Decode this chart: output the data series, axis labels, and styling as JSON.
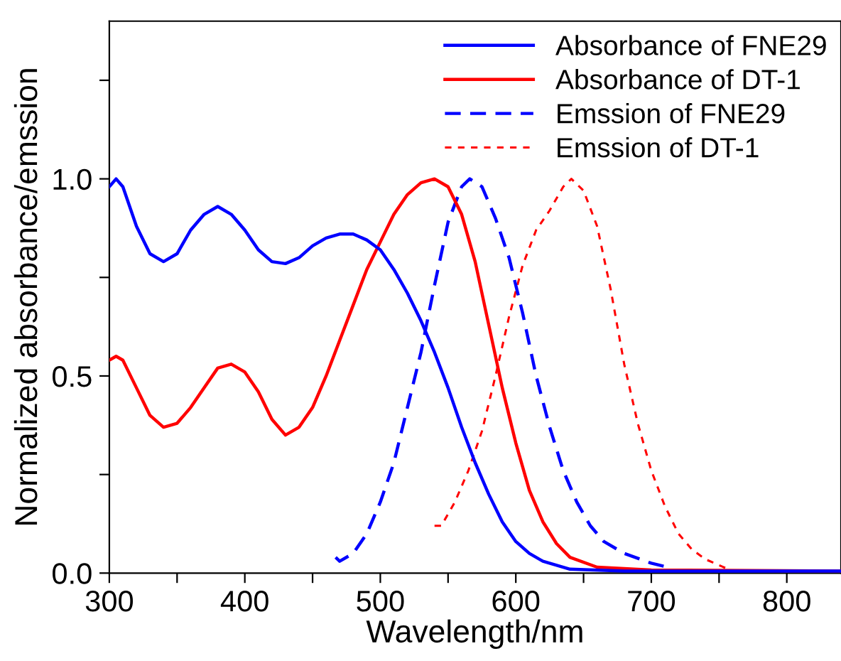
{
  "chart_data": {
    "type": "line",
    "xlabel": "Wavelength/nm",
    "ylabel": "Normalized absorbance/emssion",
    "xlim": [
      300,
      840
    ],
    "ylim": [
      0,
      1.4
    ],
    "xticks": [
      300,
      {
        "value": 350,
        "label": null
      },
      400,
      {
        "value": 450,
        "label": null
      },
      500,
      {
        "value": 550,
        "label": null
      },
      600,
      {
        "value": 650,
        "label": null
      },
      700,
      {
        "value": 750,
        "label": null
      },
      800
    ],
    "yticks": [
      {
        "value": 0,
        "label": "0.0"
      },
      {
        "value": 0.25,
        "label": null
      },
      0.5,
      {
        "value": 0.75,
        "label": null
      },
      {
        "value": 1,
        "label": "1.0"
      },
      {
        "value": 1.25,
        "label": null
      }
    ],
    "legend": "top right",
    "grid": false,
    "series": [
      {
        "name": "Absorbance of FNE29",
        "color": "#0000ff",
        "line_style": "solid",
        "x": [
          300,
          305,
          310,
          320,
          330,
          340,
          350,
          360,
          370,
          380,
          390,
          400,
          410,
          420,
          430,
          440,
          450,
          460,
          470,
          480,
          490,
          500,
          510,
          520,
          530,
          540,
          550,
          560,
          570,
          580,
          590,
          600,
          610,
          620,
          640,
          680,
          840
        ],
        "values": [
          0.98,
          1.0,
          0.98,
          0.88,
          0.81,
          0.79,
          0.81,
          0.87,
          0.91,
          0.93,
          0.91,
          0.87,
          0.82,
          0.79,
          0.785,
          0.8,
          0.83,
          0.85,
          0.86,
          0.86,
          0.845,
          0.82,
          0.77,
          0.71,
          0.64,
          0.56,
          0.47,
          0.37,
          0.28,
          0.2,
          0.13,
          0.08,
          0.05,
          0.03,
          0.01,
          0.005,
          0.005
        ]
      },
      {
        "name": "Absorbance of DT-1",
        "color": "#ff0000",
        "line_style": "solid",
        "x": [
          300,
          305,
          310,
          320,
          330,
          340,
          350,
          360,
          370,
          380,
          390,
          400,
          410,
          420,
          430,
          440,
          450,
          460,
          470,
          480,
          490,
          500,
          510,
          520,
          530,
          540,
          550,
          560,
          570,
          580,
          590,
          600,
          610,
          620,
          630,
          640,
          660,
          700,
          840
        ],
        "values": [
          0.54,
          0.55,
          0.54,
          0.47,
          0.4,
          0.37,
          0.38,
          0.42,
          0.47,
          0.52,
          0.53,
          0.51,
          0.46,
          0.39,
          0.35,
          0.37,
          0.42,
          0.5,
          0.59,
          0.68,
          0.77,
          0.84,
          0.91,
          0.96,
          0.99,
          1.0,
          0.98,
          0.91,
          0.79,
          0.63,
          0.47,
          0.33,
          0.21,
          0.13,
          0.075,
          0.04,
          0.015,
          0.008,
          0.005
        ]
      },
      {
        "name": "Emssion of FNE29",
        "color": "#0000ff",
        "line_style": "dashed",
        "x": [
          467,
          470,
          480,
          490,
          500,
          510,
          520,
          530,
          540,
          550,
          560,
          566,
          575,
          585,
          595,
          605,
          615,
          625,
          635,
          645,
          655,
          665,
          680,
          700,
          712
        ],
        "values": [
          0.04,
          0.03,
          0.05,
          0.1,
          0.18,
          0.28,
          0.42,
          0.56,
          0.73,
          0.89,
          0.98,
          1.0,
          0.98,
          0.9,
          0.8,
          0.66,
          0.5,
          0.37,
          0.26,
          0.18,
          0.12,
          0.08,
          0.05,
          0.025,
          0.015
        ]
      },
      {
        "name": "Emssion of DT-1",
        "color": "#ff0000",
        "line_style": "short_dashed",
        "x": [
          540,
          545,
          555,
          565,
          575,
          585,
          595,
          605,
          615,
          625,
          635,
          641,
          650,
          660,
          670,
          680,
          690,
          700,
          710,
          720,
          730,
          740,
          750,
          760
        ],
        "values": [
          0.12,
          0.12,
          0.18,
          0.26,
          0.36,
          0.5,
          0.65,
          0.78,
          0.87,
          0.92,
          0.98,
          1.0,
          0.97,
          0.88,
          0.72,
          0.53,
          0.38,
          0.26,
          0.17,
          0.1,
          0.06,
          0.035,
          0.02,
          0.005
        ]
      }
    ]
  }
}
